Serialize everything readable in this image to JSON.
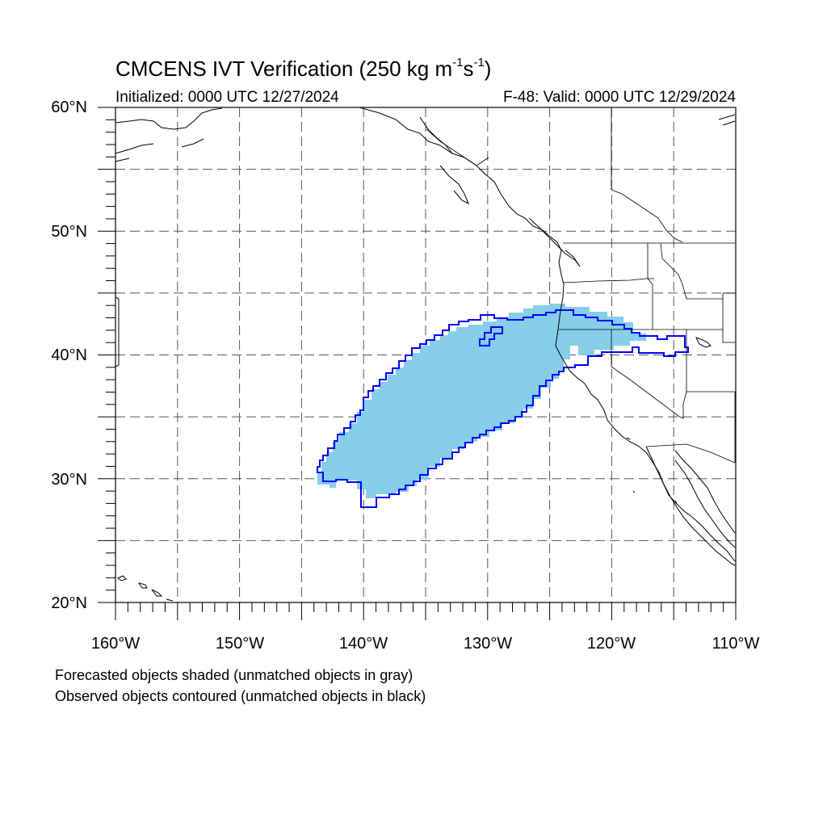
{
  "title": {
    "main": "CMCENS IVT Verification (250 kg m",
    "exp1": "-1",
    "unit_mid": "s",
    "exp2": "-1",
    "close": ")"
  },
  "initialized": "Initialized: 0000 UTC 12/27/2024",
  "valid": "F-48: Valid: 0000 UTC 12/29/2024",
  "lat_labels": [
    "60°N",
    "50°N",
    "40°N",
    "30°N",
    "20°N"
  ],
  "lon_labels": [
    "160°W",
    "150°W",
    "140°W",
    "130°W",
    "120°W",
    "110°W"
  ],
  "notes": {
    "forecast": "Forecasted objects shaded (unmatched objects in gray)",
    "observed": "Observed objects contoured (unmatched objects in black)"
  },
  "colors": {
    "forecast_fill": "#87ceea",
    "observed_contour": "#0000ff",
    "coastline": "#000000",
    "grid": "#555555"
  },
  "map_extent": {
    "lon_min": -160,
    "lon_max": -110,
    "lat_min": 20,
    "lat_max": 60,
    "grid_step_deg": 5
  }
}
